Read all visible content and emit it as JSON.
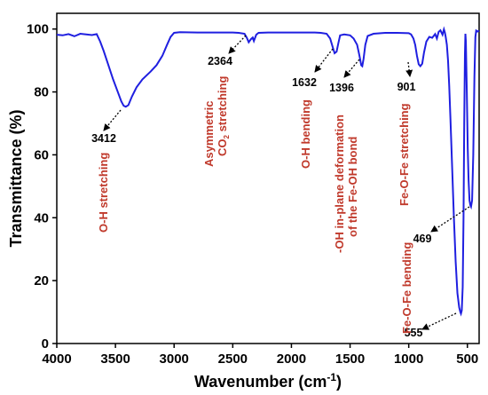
{
  "chart_data": {
    "type": "line",
    "title": "",
    "xlabel": "Wavenumber (cm",
    "xlabel_sup": "-1",
    "xlabel_tail": ")",
    "ylabel": "Transmittance (%)",
    "xlim": [
      4000,
      400
    ],
    "ylim": [
      0,
      105
    ],
    "x_reversed": true,
    "xticks": [
      4000,
      3500,
      3000,
      2500,
      2000,
      1500,
      1000,
      500
    ],
    "yticks": [
      0,
      20,
      40,
      60,
      80,
      100
    ],
    "xtick_labels": [
      "4000",
      "3500",
      "3000",
      "2500",
      "2000",
      "1500",
      "1000",
      "500"
    ],
    "ytick_labels": [
      "0",
      "20",
      "40",
      "60",
      "80",
      "100"
    ],
    "grid": false,
    "series": [
      {
        "color": "#1f1fe0",
        "points": [
          [
            4000,
            98.2
          ],
          [
            3950,
            98.0
          ],
          [
            3900,
            98.4
          ],
          [
            3850,
            97.7
          ],
          [
            3800,
            98.5
          ],
          [
            3750,
            98.3
          ],
          [
            3700,
            98.1
          ],
          [
            3660,
            98.4
          ],
          [
            3630,
            96.0
          ],
          [
            3600,
            93.0
          ],
          [
            3560,
            88.5
          ],
          [
            3520,
            84.0
          ],
          [
            3480,
            80.0
          ],
          [
            3450,
            77.0
          ],
          [
            3430,
            75.6
          ],
          [
            3412,
            75.3
          ],
          [
            3390,
            75.8
          ],
          [
            3360,
            78.5
          ],
          [
            3320,
            81.5
          ],
          [
            3270,
            84.0
          ],
          [
            3200,
            86.5
          ],
          [
            3150,
            88.5
          ],
          [
            3100,
            91.5
          ],
          [
            3060,
            95.0
          ],
          [
            3030,
            97.5
          ],
          [
            3000,
            98.8
          ],
          [
            2950,
            99.0
          ],
          [
            2800,
            98.9
          ],
          [
            2700,
            98.9
          ],
          [
            2600,
            98.9
          ],
          [
            2500,
            98.9
          ],
          [
            2450,
            98.8
          ],
          [
            2400,
            98.5
          ],
          [
            2380,
            97.2
          ],
          [
            2364,
            95.8
          ],
          [
            2345,
            96.8
          ],
          [
            2330,
            97.3
          ],
          [
            2320,
            96.2
          ],
          [
            2300,
            98.2
          ],
          [
            2280,
            98.8
          ],
          [
            2200,
            98.9
          ],
          [
            2000,
            98.9
          ],
          [
            1800,
            98.9
          ],
          [
            1750,
            98.8
          ],
          [
            1700,
            98.5
          ],
          [
            1670,
            97.0
          ],
          [
            1650,
            94.5
          ],
          [
            1632,
            92.3
          ],
          [
            1615,
            92.8
          ],
          [
            1600,
            95.5
          ],
          [
            1585,
            98.0
          ],
          [
            1550,
            98.3
          ],
          [
            1500,
            98.0
          ],
          [
            1470,
            97.0
          ],
          [
            1440,
            95.0
          ],
          [
            1420,
            91.5
          ],
          [
            1405,
            88.5
          ],
          [
            1396,
            88.2
          ],
          [
            1385,
            90.5
          ],
          [
            1370,
            95.0
          ],
          [
            1350,
            97.8
          ],
          [
            1300,
            98.5
          ],
          [
            1200,
            98.8
          ],
          [
            1100,
            98.8
          ],
          [
            1000,
            98.7
          ],
          [
            980,
            98.3
          ],
          [
            960,
            97.0
          ],
          [
            945,
            95.0
          ],
          [
            930,
            91.5
          ],
          [
            915,
            88.8
          ],
          [
            901,
            88.2
          ],
          [
            885,
            89.0
          ],
          [
            870,
            92.5
          ],
          [
            850,
            96.0
          ],
          [
            825,
            97.5
          ],
          [
            800,
            97.2
          ],
          [
            775,
            98.4
          ],
          [
            760,
            97.0
          ],
          [
            745,
            99.1
          ],
          [
            730,
            99.6
          ],
          [
            712,
            98.2
          ],
          [
            700,
            99.9
          ],
          [
            692,
            98.9
          ],
          [
            685,
            97.5
          ],
          [
            675,
            95.0
          ],
          [
            665,
            90.0
          ],
          [
            655,
            82.0
          ],
          [
            645,
            72.0
          ],
          [
            630,
            56.0
          ],
          [
            615,
            40.0
          ],
          [
            600,
            26.0
          ],
          [
            585,
            16.0
          ],
          [
            570,
            11.5
          ],
          [
            560,
            10.0
          ],
          [
            555,
            9.5
          ],
          [
            548,
            10.5
          ],
          [
            540,
            18.0
          ],
          [
            533,
            40.0
          ],
          [
            527,
            70.0
          ],
          [
            521,
            92.0
          ],
          [
            517,
            98.5
          ],
          [
            513,
            96.0
          ],
          [
            505,
            80.0
          ],
          [
            497,
            62.0
          ],
          [
            490,
            52.0
          ],
          [
            482,
            45.5
          ],
          [
            475,
            44.0
          ],
          [
            469,
            43.5
          ],
          [
            460,
            45.5
          ],
          [
            450,
            60.0
          ],
          [
            440,
            85.0
          ],
          [
            432,
            97.5
          ],
          [
            425,
            99.5
          ],
          [
            415,
            99.2
          ],
          [
            400,
            99.5
          ]
        ]
      }
    ],
    "peaks": [
      {
        "x": 3412,
        "label": "3412"
      },
      {
        "x": 2364,
        "label": "2364"
      },
      {
        "x": 1632,
        "label": "1632"
      },
      {
        "x": 1396,
        "label": "1396"
      },
      {
        "x": 901,
        "label": "901"
      },
      {
        "x": 469,
        "label": "469"
      },
      {
        "x": 555,
        "label": "555"
      }
    ],
    "annotations": [
      {
        "lines": [
          "O-H stretching"
        ]
      },
      {
        "lines": [
          "Asymmetric",
          "CO",
          "stretching"
        ],
        "sub": "2"
      },
      {
        "lines": [
          "O-H bending"
        ]
      },
      {
        "lines": [
          "-OH in-plane deformation",
          "of the Fe-OH bond"
        ]
      },
      {
        "lines": [
          "Fe-O-Fe stretching"
        ]
      },
      {
        "lines": [
          "Fe-O-Fe bending"
        ]
      }
    ]
  }
}
